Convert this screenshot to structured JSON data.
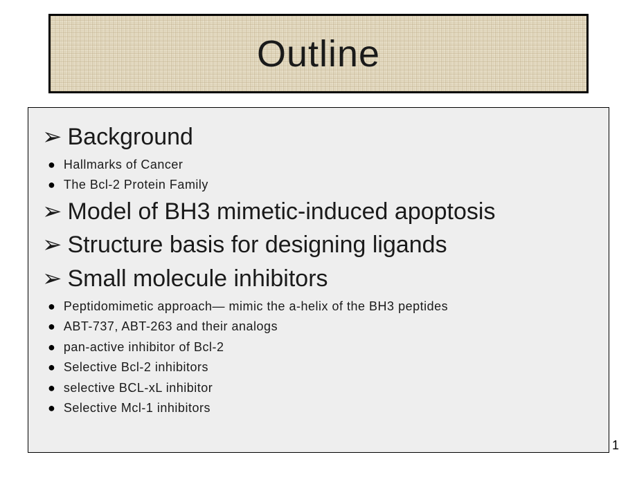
{
  "slide": {
    "title": "Outline",
    "page_number": "1",
    "title_box": {
      "background_color": "#e8dfc8",
      "border_color": "#000000",
      "text_color": "#1a1a1a",
      "title_fontsize": 54
    },
    "content_box": {
      "background_color": "#eeeeee",
      "border_color": "#000000"
    },
    "items": [
      {
        "level": 1,
        "text": "Background"
      },
      {
        "level": 2,
        "text": "Hallmarks of Cancer"
      },
      {
        "level": 2,
        "text": "The Bcl-2 Protein Family"
      },
      {
        "level": 1,
        "text": "Model of BH3 mimetic-induced apoptosis"
      },
      {
        "level": 1,
        "text": "Structure basis for designing ligands"
      },
      {
        "level": 1,
        "text": "Small molecule inhibitors"
      },
      {
        "level": 2,
        "text": "Peptidomimetic approach— mimic the a-helix of the BH3 peptides"
      },
      {
        "level": 2,
        "text": "ABT-737, ABT-263 and their analogs"
      },
      {
        "level": 2,
        "text": "pan-active inhibitor of Bcl-2"
      },
      {
        "level": 2,
        "text": "Selective Bcl-2 inhibitors"
      },
      {
        "level": 2,
        "text": "selective BCL-xL inhibitor"
      },
      {
        "level": 2,
        "text": "Selective Mcl-1 inhibitors"
      }
    ],
    "bullets": {
      "level1_glyph": "➢",
      "level2_glyph": "●"
    },
    "typography": {
      "level1_fontsize": 34,
      "level2_fontsize": 18,
      "font_family": "Arial"
    }
  }
}
